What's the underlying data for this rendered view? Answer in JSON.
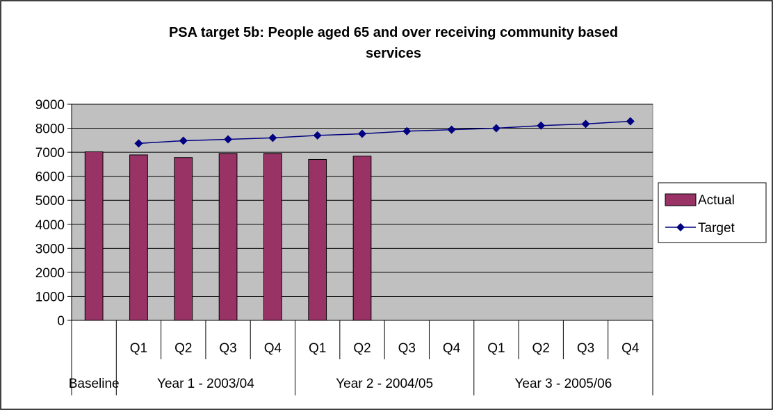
{
  "chart_data": {
    "type": "bar",
    "title_lines": [
      "PSA target 5b: People aged 65 and over receiving community based",
      "services"
    ],
    "categories": [
      "",
      "Q1",
      "Q2",
      "Q3",
      "Q4",
      "Q1",
      "Q2",
      "Q3",
      "Q4",
      "Q1",
      "Q2",
      "Q3",
      "Q4"
    ],
    "groups": [
      {
        "label": "Baseline",
        "span": [
          0,
          0
        ]
      },
      {
        "label": "Year 1 - 2003/04",
        "span": [
          1,
          4
        ]
      },
      {
        "label": "Year 2 - 2004/05",
        "span": [
          5,
          8
        ]
      },
      {
        "label": "Year 3 - 2005/06",
        "span": [
          9,
          12
        ]
      }
    ],
    "ylim": [
      0,
      9000
    ],
    "yticks": [
      0,
      1000,
      2000,
      3000,
      4000,
      5000,
      6000,
      7000,
      8000,
      9000
    ],
    "series": [
      {
        "name": "Actual",
        "type": "bar",
        "color": "#993366",
        "values": [
          7020,
          6890,
          6780,
          6950,
          6950,
          6700,
          6840,
          null,
          null,
          null,
          null,
          null,
          null
        ]
      },
      {
        "name": "Target",
        "type": "line",
        "color": "#000080",
        "values": [
          null,
          7370,
          7480,
          7540,
          7600,
          7700,
          7770,
          7880,
          7940,
          8000,
          8110,
          8180,
          8290
        ]
      }
    ],
    "grid": true,
    "plot_background": "#c0c0c0",
    "legend_position": "right"
  }
}
